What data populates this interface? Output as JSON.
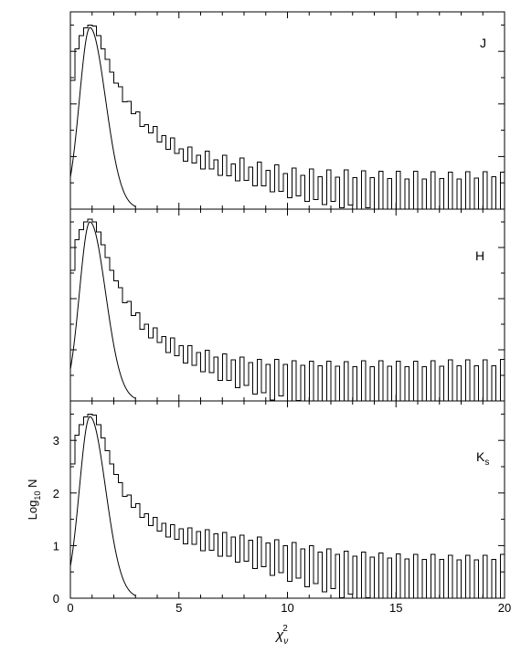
{
  "chart_data": [
    {
      "type": "line",
      "panel_label": "J",
      "x_range": [
        0,
        20
      ],
      "y_range": [
        0,
        3.75
      ],
      "x_tick_labels_shown": false,
      "y_tick_labels_shown": false,
      "series": [
        {
          "kind": "histogram",
          "bin_width": 0.2,
          "x_start": 0,
          "values": [
            2.45,
            3.05,
            3.3,
            3.45,
            3.5,
            3.48,
            3.3,
            3.05,
            2.85,
            2.6,
            2.4,
            2.25,
            2.1,
            2.0,
            1.85,
            1.75,
            1.65,
            1.55,
            1.5,
            1.45,
            1.38,
            1.32,
            1.26,
            1.2,
            1.15,
            1.1,
            1.05,
            1.0,
            0.98,
            0.95,
            0.92,
            0.9,
            0.88,
            0.85,
            0.82,
            0.8,
            0.78,
            0.76,
            0.74,
            0.72,
            0.7,
            0.68,
            0.66,
            0.64,
            0.62,
            0.6,
            0.58,
            0.56,
            0.54,
            0.52,
            0.5,
            0.48,
            0.47,
            0.46,
            0.45,
            0.44,
            0.43,
            0.42,
            0.41,
            0.4,
            0.4,
            0.39,
            0.38,
            0.37,
            0.36,
            0.35,
            0.34,
            0.33,
            0.33,
            0.32,
            0.31,
            0.3,
            0.29,
            0.28,
            0.28,
            0.27,
            0.26,
            0.25,
            0.25,
            0.24,
            0.23,
            0.22,
            0.22,
            0.21,
            0.2,
            0.2,
            0.19,
            0.18,
            0.18,
            0.17,
            0.16,
            0.16,
            0.15,
            0.14,
            0.14,
            0.13,
            0.12,
            0.12,
            0.11,
            0.1
          ],
          "jitter": [
            0.0,
            0.0,
            0.0,
            0.0,
            0.0,
            0.0,
            0.0,
            0.0,
            0.0,
            0.0,
            0.0,
            0.08,
            -0.06,
            0.05,
            -0.04,
            0.1,
            -0.08,
            0.06,
            -0.05,
            0.12,
            -0.1,
            0.08,
            -0.12,
            0.15,
            -0.09,
            0.05,
            -0.14,
            0.18,
            -0.1,
            0.07,
            -0.16,
            0.2,
            -0.12,
            0.09,
            -0.18,
            0.22,
            -0.15,
            0.1,
            -0.2,
            0.25,
            -0.15,
            0.12,
            -0.22,
            0.25,
            -0.18,
            0.14,
            -0.25,
            0.28,
            -0.2,
            0.16,
            -0.28,
            0.3,
            -0.22,
            0.18,
            -0.3,
            0.32,
            -0.25,
            0.2,
            -0.32,
            0.35,
            -0.25,
            0.22,
            -0.35,
            0.38,
            -0.28,
            0.25,
            -0.38,
            0.4,
            -0.3,
            0.28,
            -0.4,
            0.42,
            -0.32,
            0.3,
            -0.42,
            0.45,
            -0.35,
            0.32,
            -0.45,
            0.48,
            -0.38,
            0.35,
            -0.5,
            0.5,
            -0.4,
            0.38,
            -0.5,
            0.52,
            -0.45,
            0.4,
            -0.55,
            0.55,
            -0.5,
            0.45,
            -0.6,
            0.58,
            -0.55,
            0.5,
            -0.62,
            0.6
          ]
        },
        {
          "kind": "curve",
          "peak_x": 0.9,
          "peak_y": 3.45,
          "width": 0.72
        }
      ]
    },
    {
      "type": "line",
      "panel_label": "H",
      "x_range": [
        0,
        20
      ],
      "y_range": [
        0,
        3.75
      ],
      "x_tick_labels_shown": false,
      "y_tick_labels_shown": false,
      "series": [
        {
          "kind": "histogram",
          "bin_width": 0.2,
          "x_start": 0,
          "values": [
            2.55,
            3.15,
            3.35,
            3.5,
            3.55,
            3.5,
            3.3,
            3.05,
            2.8,
            2.55,
            2.35,
            2.15,
            2.0,
            1.85,
            1.72,
            1.6,
            1.5,
            1.42,
            1.35,
            1.28,
            1.22,
            1.16,
            1.1,
            1.05,
            1.0,
            0.96,
            0.92,
            0.88,
            0.84,
            0.8,
            0.77,
            0.74,
            0.71,
            0.68,
            0.65,
            0.62,
            0.6,
            0.58,
            0.56,
            0.54,
            0.52,
            0.5,
            0.48,
            0.46,
            0.44,
            0.43,
            0.42,
            0.41,
            0.4,
            0.39,
            0.38,
            0.37,
            0.36,
            0.35,
            0.34,
            0.33,
            0.32,
            0.31,
            0.3,
            0.3,
            0.29,
            0.28,
            0.27,
            0.27,
            0.26,
            0.25,
            0.24,
            0.24,
            0.23,
            0.22,
            0.22,
            0.21,
            0.2,
            0.2,
            0.19,
            0.18,
            0.18,
            0.17,
            0.16,
            0.16,
            0.15,
            0.15,
            0.14,
            0.14,
            0.13,
            0.13,
            0.12,
            0.12,
            0.11,
            0.11,
            0.1,
            0.1,
            0.09,
            0.09,
            0.08,
            0.08,
            0.07,
            0.07,
            0.06,
            0.06
          ],
          "jitter": [
            0.0,
            0.0,
            0.0,
            0.0,
            0.0,
            0.0,
            0.0,
            0.0,
            0.0,
            0.0,
            0.0,
            0.06,
            -0.08,
            0.1,
            -0.05,
            0.12,
            -0.1,
            0.08,
            -0.12,
            0.15,
            -0.08,
            0.1,
            -0.15,
            0.18,
            -0.12,
            0.12,
            -0.18,
            0.2,
            -0.14,
            0.15,
            -0.2,
            0.25,
            -0.16,
            0.18,
            -0.25,
            0.3,
            -0.2,
            0.22,
            -0.3,
            0.32,
            -0.22,
            0.25,
            -0.35,
            0.35,
            -0.28,
            0.28,
            -0.4,
            0.4,
            -0.3,
            0.32,
            -0.45,
            0.42,
            -0.35,
            0.35,
            -0.5,
            0.45,
            -0.38,
            0.38,
            -0.55,
            0.48,
            -0.4,
            0.4,
            -0.6,
            0.5,
            -0.42,
            0.42,
            -0.62,
            0.55,
            -0.45,
            0.45,
            -0.65,
            0.58,
            -0.48,
            0.48,
            -0.7,
            0.6,
            -0.5,
            0.5,
            -0.72,
            0.62,
            -0.52,
            0.52,
            -0.75,
            0.65,
            -0.55,
            0.55,
            -0.78,
            0.68,
            -0.58,
            0.58,
            -0.8,
            0.7,
            -0.6,
            0.6,
            -0.82,
            0.72,
            -0.62,
            0.62,
            -0.85,
            0.75
          ]
        },
        {
          "kind": "curve",
          "peak_x": 0.9,
          "peak_y": 3.5,
          "width": 0.72
        }
      ]
    },
    {
      "type": "line",
      "panel_label": "K",
      "panel_label_sub": "s",
      "x_range": [
        0,
        20
      ],
      "y_range": [
        0,
        3.75
      ],
      "xlabel": "χ",
      "xlabel_sub": "ν",
      "xlabel_sup": "2",
      "ylabel": "Log",
      "ylabel_sub": "10",
      "ylabel_tail": " N",
      "x_ticks": [
        0,
        5,
        10,
        15,
        20
      ],
      "x_tick_labels": [
        "0",
        "5",
        "10",
        "15",
        "20"
      ],
      "y_ticks": [
        0,
        1,
        2,
        3
      ],
      "y_tick_labels": [
        "0",
        "1",
        "2",
        "3"
      ],
      "series": [
        {
          "kind": "histogram",
          "bin_width": 0.2,
          "x_start": 0,
          "values": [
            2.55,
            3.1,
            3.3,
            3.45,
            3.5,
            3.48,
            3.3,
            3.05,
            2.8,
            2.55,
            2.35,
            2.15,
            2.0,
            1.88,
            1.78,
            1.7,
            1.62,
            1.55,
            1.48,
            1.42,
            1.36,
            1.32,
            1.28,
            1.25,
            1.22,
            1.2,
            1.18,
            1.16,
            1.14,
            1.12,
            1.1,
            1.08,
            1.06,
            1.04,
            1.02,
            1.0,
            0.98,
            0.96,
            0.94,
            0.92,
            0.9,
            0.88,
            0.86,
            0.84,
            0.82,
            0.8,
            0.78,
            0.76,
            0.74,
            0.72,
            0.7,
            0.68,
            0.66,
            0.64,
            0.62,
            0.6,
            0.58,
            0.56,
            0.54,
            0.52,
            0.5,
            0.48,
            0.46,
            0.44,
            0.43,
            0.42,
            0.41,
            0.4,
            0.39,
            0.38,
            0.37,
            0.36,
            0.35,
            0.34,
            0.33,
            0.32,
            0.31,
            0.3,
            0.29,
            0.28,
            0.27,
            0.26,
            0.26,
            0.25,
            0.24,
            0.24,
            0.23,
            0.22,
            0.22,
            0.21,
            0.2,
            0.2,
            0.19,
            0.18,
            0.18,
            0.17,
            0.16,
            0.16,
            0.15,
            0.15
          ],
          "jitter": [
            0.0,
            0.0,
            0.0,
            0.0,
            0.0,
            0.0,
            0.0,
            0.0,
            0.0,
            0.0,
            0.0,
            0.05,
            -0.06,
            0.08,
            -0.05,
            0.1,
            -0.08,
            0.06,
            -0.1,
            0.12,
            -0.08,
            0.1,
            -0.12,
            0.15,
            -0.1,
            0.12,
            -0.15,
            0.18,
            -0.12,
            0.15,
            -0.2,
            0.22,
            -0.15,
            0.18,
            -0.22,
            0.25,
            -0.18,
            0.2,
            -0.25,
            0.28,
            -0.2,
            0.22,
            -0.3,
            0.32,
            -0.22,
            0.25,
            -0.35,
            0.35,
            -0.25,
            0.28,
            -0.38,
            0.38,
            -0.28,
            0.3,
            -0.4,
            0.4,
            -0.3,
            0.32,
            -0.42,
            0.42,
            -0.32,
            0.35,
            -0.45,
            0.45,
            -0.35,
            0.38,
            -0.48,
            0.48,
            -0.38,
            0.4,
            -0.5,
            0.5,
            -0.4,
            0.42,
            -0.52,
            0.52,
            -0.42,
            0.45,
            -0.55,
            0.55,
            -0.45,
            0.48,
            -0.58,
            0.58,
            -0.48,
            0.5,
            -0.6,
            0.6,
            -0.5,
            0.52,
            -0.62,
            0.62,
            -0.52,
            0.55,
            -0.65,
            0.65,
            -0.55,
            0.58,
            -0.68,
            0.68
          ]
        },
        {
          "kind": "curve",
          "peak_x": 0.9,
          "peak_y": 3.45,
          "width": 0.72
        }
      ]
    }
  ]
}
